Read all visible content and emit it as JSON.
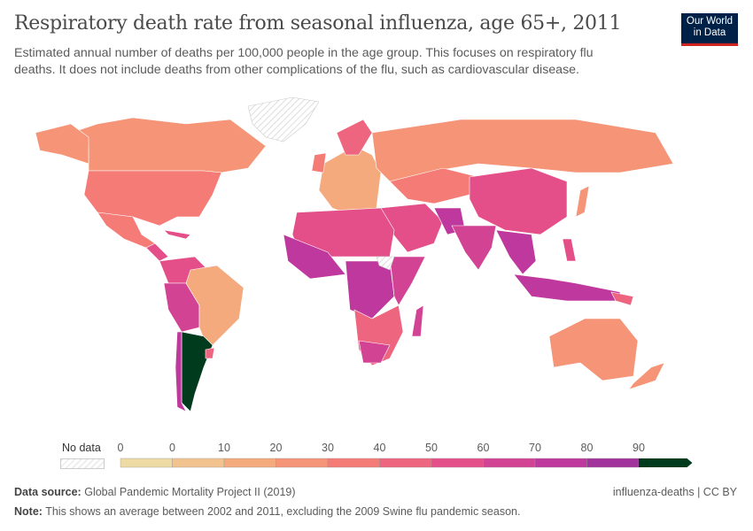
{
  "header": {
    "title": "Respiratory death rate from seasonal influenza, age 65+, 2011",
    "subtitle": "Estimated annual number of deaths per 100,000 people in the age group. This focuses on respiratory flu deaths. It does not include deaths from other complications of the flu, such as cardiovascular disease.",
    "logo": "Our World in Data"
  },
  "legend": {
    "no_data_label": "No data",
    "tick_labels": [
      "0",
      "0",
      "10",
      "20",
      "30",
      "40",
      "50",
      "60",
      "70",
      "80",
      "90"
    ],
    "bins": [
      {
        "from": 0,
        "to": 0,
        "color": "#eedba4"
      },
      {
        "from": 0,
        "to": 10,
        "color": "#f2c38f"
      },
      {
        "from": 10,
        "to": 20,
        "color": "#f4aa7d"
      },
      {
        "from": 20,
        "to": 30,
        "color": "#f59476"
      },
      {
        "from": 30,
        "to": 40,
        "color": "#f57b76"
      },
      {
        "from": 40,
        "to": 50,
        "color": "#ee6580"
      },
      {
        "from": 50,
        "to": 60,
        "color": "#e44f89"
      },
      {
        "from": 60,
        "to": 70,
        "color": "#d34393"
      },
      {
        "from": 70,
        "to": 80,
        "color": "#bf389d"
      },
      {
        "from": 80,
        "to": 90,
        "color": "#a2339c"
      },
      {
        "from": 90,
        "to": null,
        "color": "#003b1e"
      }
    ]
  },
  "footer": {
    "source_label": "Data source:",
    "source": "Global Pandemic Mortality Project II (2019)",
    "note_label": "Note:",
    "note": "This shows an average between 2002 and 2011, excluding the 2009 Swine flu pandemic season.",
    "slug": "influenza-deaths | CC BY"
  }
}
